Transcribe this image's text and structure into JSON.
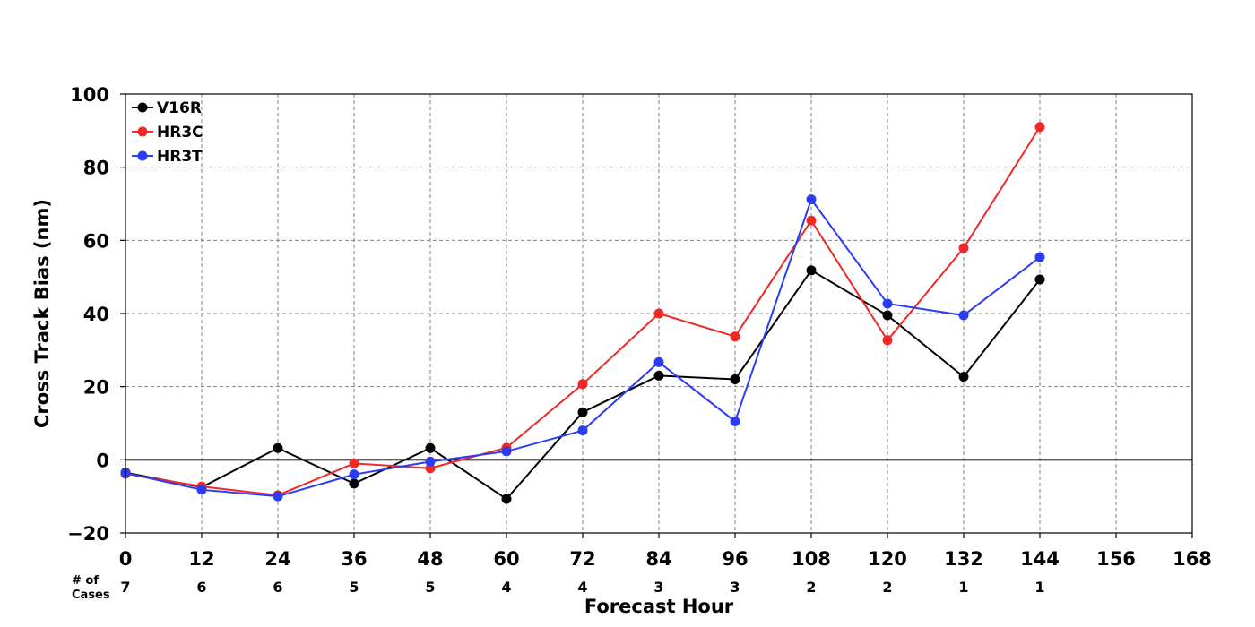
{
  "chart_data": {
    "type": "line",
    "title": "",
    "xlabel": "Forecast Hour",
    "ylabel": "Cross Track Bias (nm)",
    "xlim": [
      0,
      168
    ],
    "ylim": [
      -20,
      100
    ],
    "xticks": [
      0,
      12,
      24,
      36,
      48,
      60,
      72,
      84,
      96,
      108,
      120,
      132,
      144,
      156,
      168
    ],
    "yticks": [
      -20,
      0,
      20,
      40,
      60,
      80,
      100
    ],
    "ytick_labels": [
      "−20",
      "0",
      "20",
      "40",
      "60",
      "80",
      "100"
    ],
    "grid": true,
    "legend_position": "top-left",
    "x": [
      0,
      12,
      24,
      36,
      48,
      60,
      72,
      84,
      96,
      108,
      120,
      132,
      144
    ],
    "series": [
      {
        "name": "V16R",
        "color": "#000000",
        "values": [
          -3.5,
          -7.5,
          3.2,
          -6.5,
          3.2,
          -10.7,
          13.0,
          23.0,
          22.0,
          51.8,
          39.5,
          22.7,
          49.3
        ]
      },
      {
        "name": "HR3C",
        "color": "#f02828",
        "values": [
          -3.8,
          -7.3,
          -9.7,
          -1.0,
          -2.3,
          3.3,
          20.7,
          40.0,
          33.7,
          65.4,
          32.7,
          57.9,
          91.0
        ]
      },
      {
        "name": "HR3T",
        "color": "#2a3cf5",
        "values": [
          -3.6,
          -8.2,
          -10.0,
          -4.0,
          -0.5,
          2.3,
          8.0,
          26.7,
          10.5,
          71.2,
          42.7,
          39.5,
          55.4
        ]
      }
    ],
    "cases": {
      "label_line1": "# of",
      "label_line2": "Cases",
      "counts": [
        "7",
        "6",
        "6",
        "5",
        "5",
        "4",
        "4",
        "3",
        "3",
        "2",
        "2",
        "1",
        "1"
      ]
    }
  }
}
